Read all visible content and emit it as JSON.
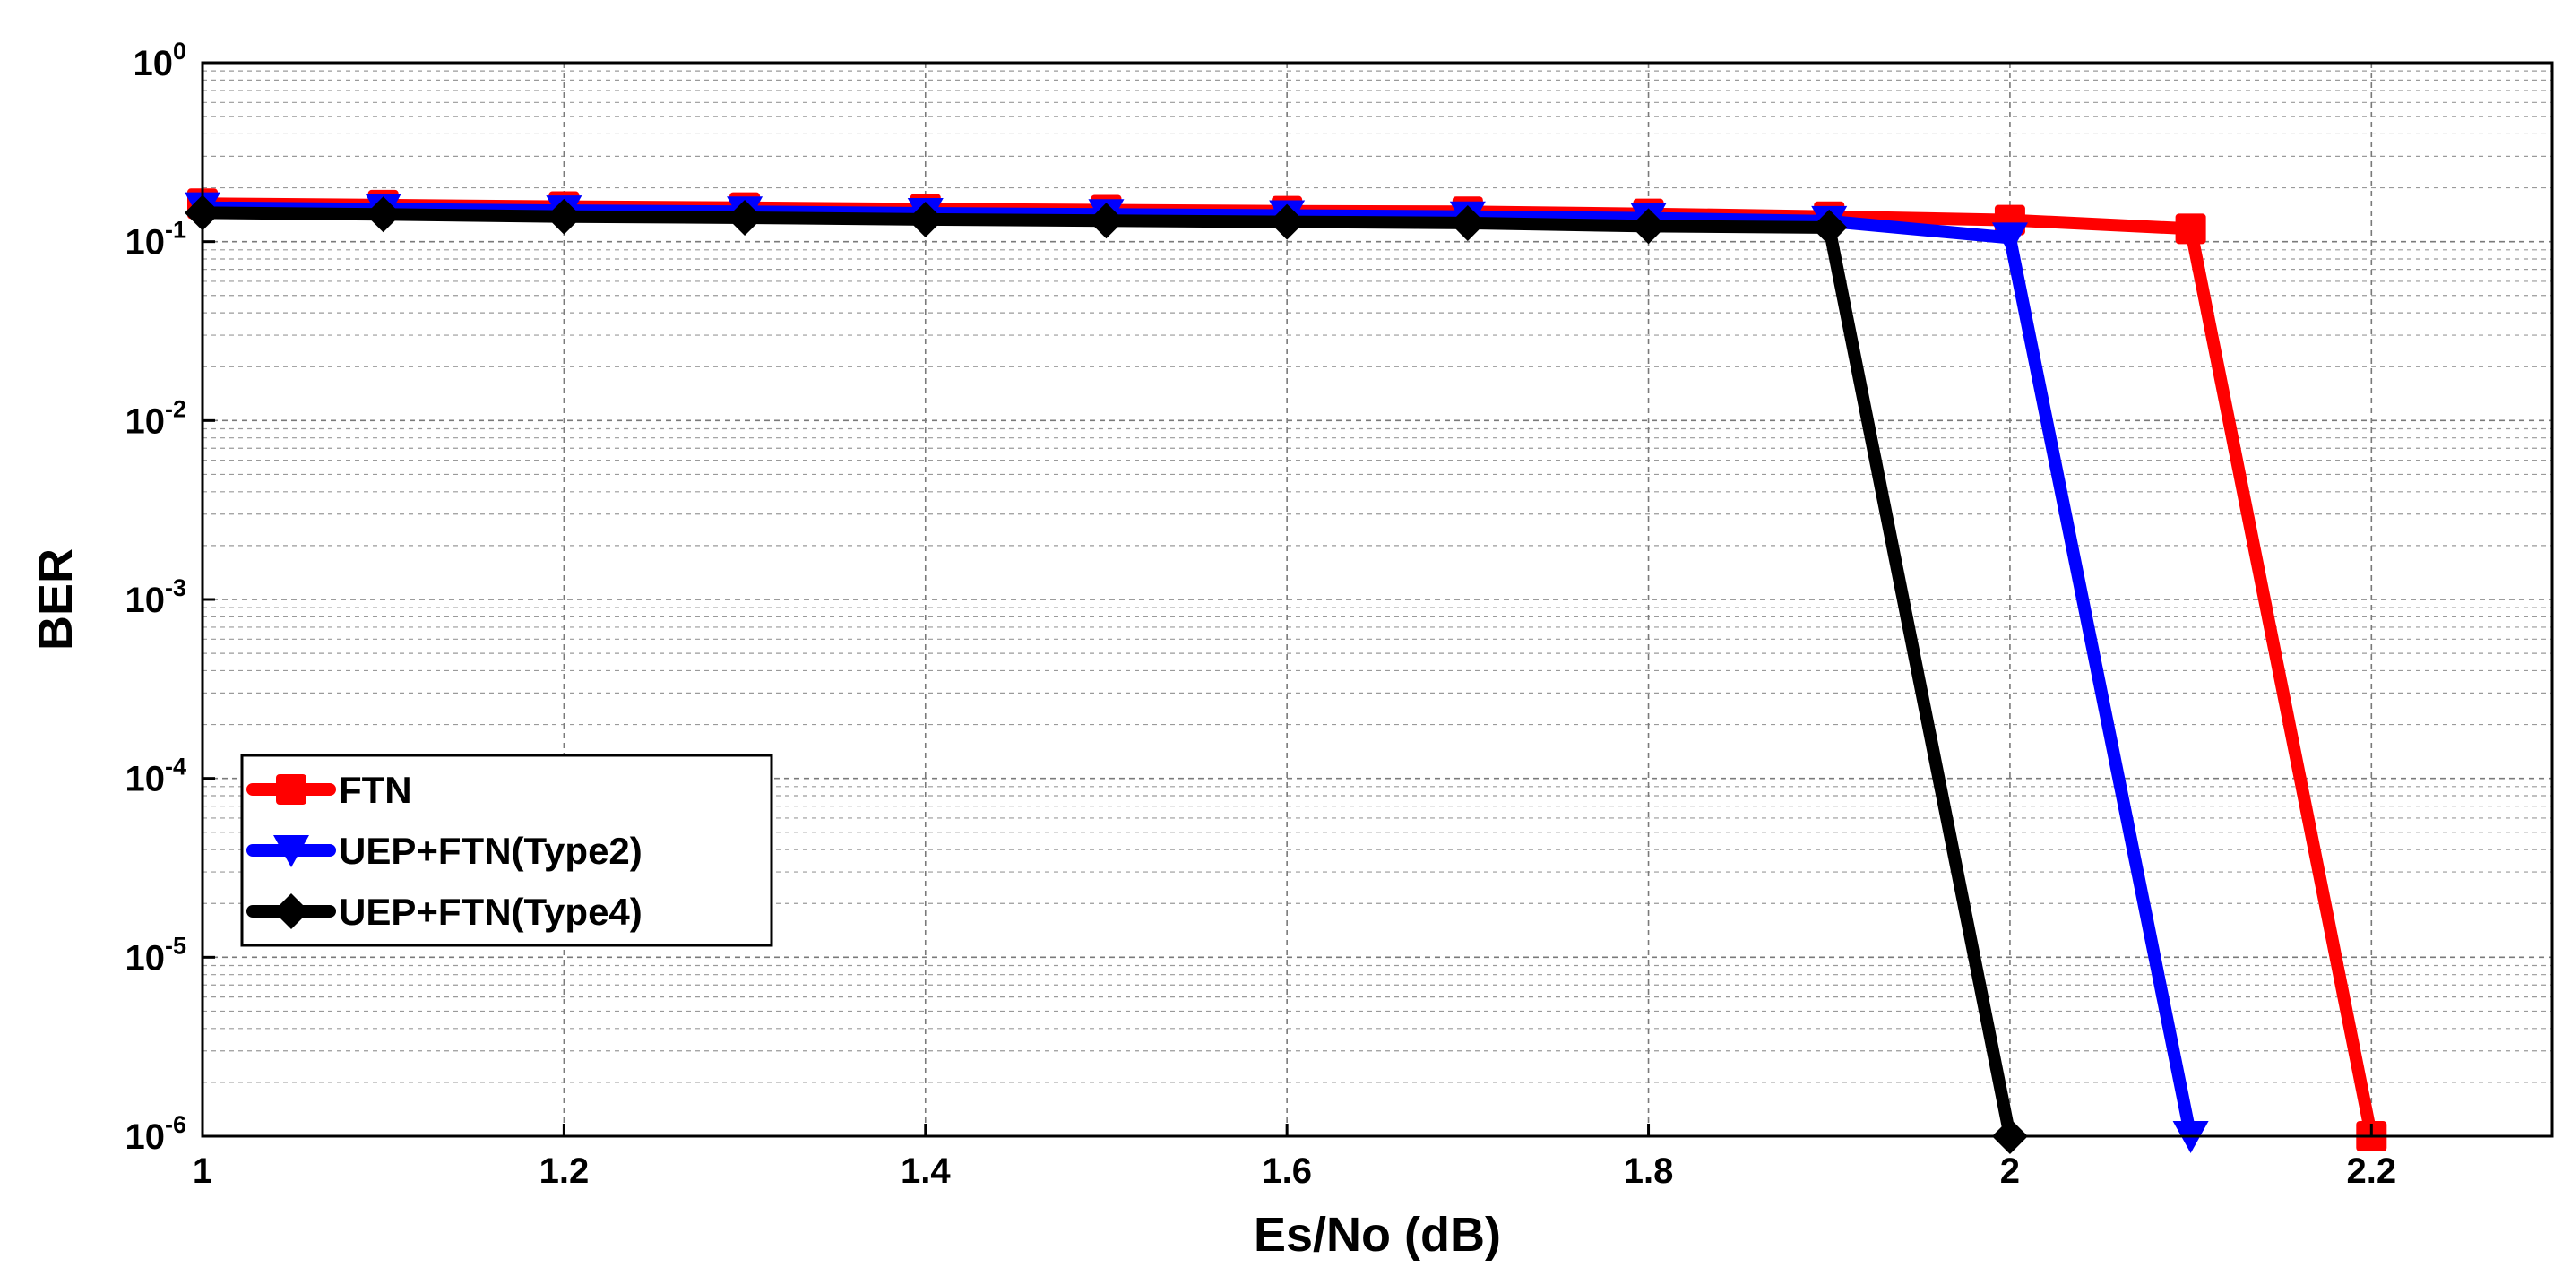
{
  "chart_data": {
    "type": "line",
    "title": "",
    "xlabel": "Es/No (dB)",
    "ylabel": "BER",
    "xlim": [
      1,
      2.3
    ],
    "ylim": [
      1e-06,
      1
    ],
    "yscale": "log",
    "grid": true,
    "legend_position": "bottom-left",
    "x_ticks": [
      {
        "value": 1,
        "label": "1"
      },
      {
        "value": 1.2,
        "label": "1.2"
      },
      {
        "value": 1.4,
        "label": "1.4"
      },
      {
        "value": 1.6,
        "label": "1.6"
      },
      {
        "value": 1.8,
        "label": "1.8"
      },
      {
        "value": 2,
        "label": "2"
      },
      {
        "value": 2.2,
        "label": "2.2"
      }
    ],
    "y_ticks": [
      {
        "value": 1,
        "base": "10",
        "exp": "0"
      },
      {
        "value": 0.1,
        "base": "10",
        "exp": "-1"
      },
      {
        "value": 0.01,
        "base": "10",
        "exp": "-2"
      },
      {
        "value": 0.001,
        "base": "10",
        "exp": "-3"
      },
      {
        "value": 0.0001,
        "base": "10",
        "exp": "-4"
      },
      {
        "value": 1e-05,
        "base": "10",
        "exp": "-5"
      },
      {
        "value": 1e-06,
        "base": "10",
        "exp": "-6"
      }
    ],
    "series": [
      {
        "name": "FTN",
        "color": "#ff0000",
        "marker": "square",
        "x": [
          1.0,
          1.1,
          1.2,
          1.3,
          1.4,
          1.5,
          1.6,
          1.7,
          1.8,
          1.9,
          2.0,
          2.1,
          2.2
        ],
        "y": [
          0.163,
          0.16,
          0.157,
          0.155,
          0.152,
          0.15,
          0.148,
          0.147,
          0.143,
          0.138,
          0.132,
          0.118,
          1e-06
        ]
      },
      {
        "name": "UEP+FTN(Type2)",
        "color": "#0000ff",
        "marker": "triangle-down",
        "x": [
          1.0,
          1.1,
          1.2,
          1.3,
          1.4,
          1.5,
          1.6,
          1.7,
          1.8,
          1.9,
          2.0,
          2.1
        ],
        "y": [
          0.155,
          0.152,
          0.149,
          0.147,
          0.144,
          0.142,
          0.14,
          0.138,
          0.135,
          0.13,
          0.105,
          1e-06
        ]
      },
      {
        "name": "UEP+FTN(Type4)",
        "color": "#000000",
        "marker": "diamond",
        "x": [
          1.0,
          1.1,
          1.2,
          1.3,
          1.4,
          1.5,
          1.6,
          1.7,
          1.8,
          1.9,
          2.0
        ],
        "y": [
          0.145,
          0.142,
          0.138,
          0.136,
          0.133,
          0.131,
          0.129,
          0.127,
          0.122,
          0.12,
          1e-06
        ]
      }
    ]
  }
}
